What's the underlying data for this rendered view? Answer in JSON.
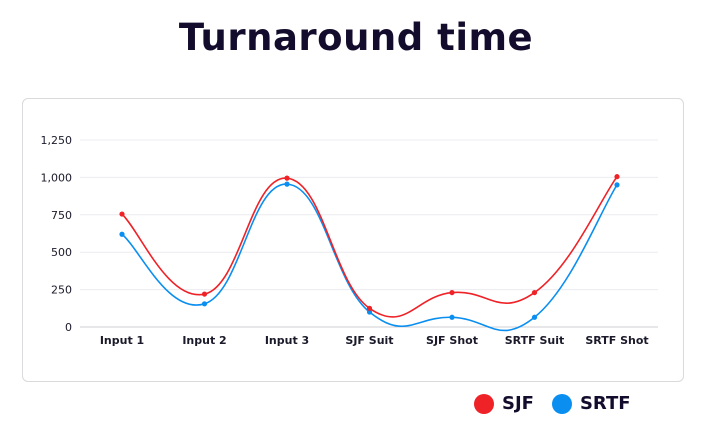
{
  "chart_data": {
    "type": "line",
    "title": "Turnaround time",
    "categories": [
      "Input 1",
      "Input 2",
      "Input 3",
      "SJF Suit",
      "SJF Shot",
      "SRTF Suit",
      "SRTF Shot"
    ],
    "series": [
      {
        "name": "SJF",
        "color": "#ee2227",
        "values": [
          755,
          220,
          995,
          125,
          230,
          230,
          1005
        ]
      },
      {
        "name": "SRTF",
        "color": "#0a8ff0",
        "values": [
          620,
          155,
          955,
          100,
          65,
          65,
          950
        ]
      }
    ],
    "yticks": [
      "0",
      "250",
      "500",
      "750",
      "1,000",
      "1,250"
    ],
    "ylim": [
      0,
      1250
    ],
    "xlabel": "",
    "ylabel": "",
    "grid": true,
    "legend_position": "bottom-right"
  }
}
